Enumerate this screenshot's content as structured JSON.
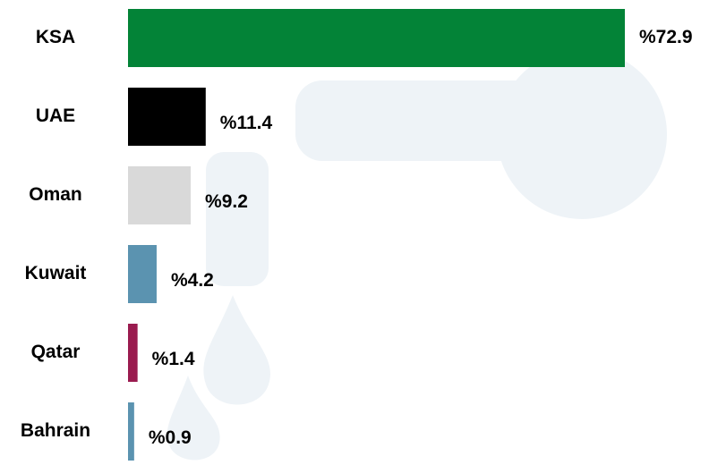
{
  "chart_data": {
    "type": "bar",
    "orientation": "horizontal",
    "categories": [
      "KSA",
      "UAE",
      "Oman",
      "Kuwait",
      "Qatar",
      "Bahrain"
    ],
    "values": [
      72.9,
      11.4,
      9.2,
      4.2,
      1.4,
      0.9
    ],
    "value_labels": [
      "%72.9",
      "%11.4",
      "%9.2",
      "%4.2",
      "%1.4",
      "%0.9"
    ],
    "colors": [
      "#038337",
      "#000000",
      "#d9d9d9",
      "#5b93b0",
      "#9a1b4f",
      "#5b93b0"
    ]
  }
}
